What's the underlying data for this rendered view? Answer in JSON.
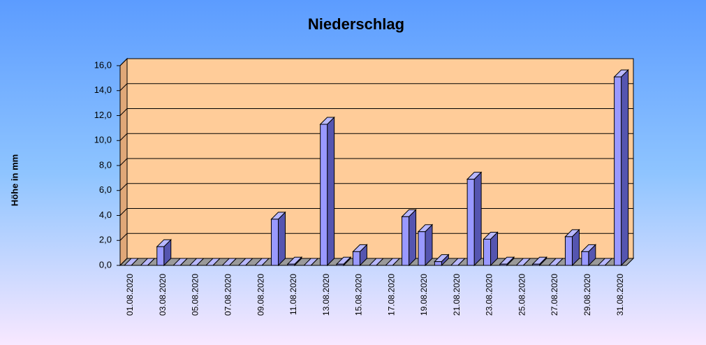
{
  "chart_data": {
    "type": "bar3d",
    "title": "Niederschlag",
    "y_label": "Höhe in mm",
    "categories": [
      "01.08.2020",
      null,
      "03.08.2020",
      null,
      "05.08.2020",
      null,
      "07.08.2020",
      null,
      "09.08.2020",
      null,
      "11.08.2020",
      null,
      "13.08.2020",
      null,
      "15.08.2020",
      null,
      "17.08.2020",
      null,
      "19.08.2020",
      null,
      "21.08.2020",
      null,
      "23.08.2020",
      null,
      "25.08.2020",
      null,
      "27.08.2020",
      null,
      "29.08.2020",
      null,
      "31.08.2020"
    ],
    "values": [
      0,
      0,
      1.5,
      0,
      0,
      0,
      0,
      0,
      0,
      3.7,
      0.1,
      0,
      11.3,
      0.1,
      1.1,
      0,
      0,
      3.9,
      2.7,
      0.3,
      0,
      6.9,
      2.1,
      0.1,
      0,
      0.1,
      0,
      2.3,
      1.1,
      0,
      15.1
    ],
    "color": "#9999ff",
    "ylim": [
      0,
      16
    ],
    "yticks": [
      {
        "value": 0,
        "label": "0,0"
      },
      {
        "value": 2,
        "label": "2,0"
      },
      {
        "value": 4,
        "label": "4,0"
      },
      {
        "value": 6,
        "label": "6,0"
      },
      {
        "value": 8,
        "label": "8,0"
      },
      {
        "value": 10,
        "label": "10,0"
      },
      {
        "value": 12,
        "label": "12,0"
      },
      {
        "value": 14,
        "label": "14,0"
      },
      {
        "value": 16,
        "label": "16,0"
      }
    ],
    "grid": true
  }
}
